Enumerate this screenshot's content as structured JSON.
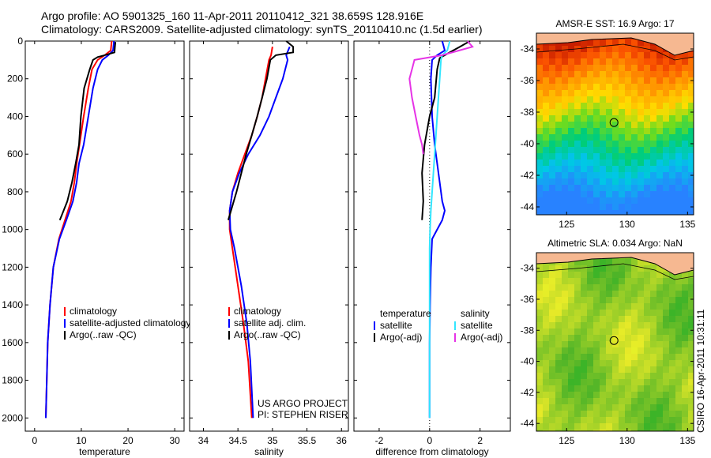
{
  "header": {
    "line1": "Argo profile: AO 5901325_160 11-Apr-2011 20110412_321 38.659S 128.916E",
    "line2": "Climatology: CARS2009. Satellite-adjusted climatology: synTS_20110410.nc (1.5d earlier)"
  },
  "credit": "CSIRO 16-Apr-2011 10:31:11",
  "colors": {
    "climatology": "#ff0000",
    "satellite": "#0000ff",
    "argo": "#000000",
    "sat_diff": "#33e6ff",
    "argo_diff": "#e633e6"
  },
  "chart_data": [
    {
      "id": "temperature",
      "type": "line",
      "xlabel": "temperature",
      "ylabel": "",
      "xlim": [
        -2,
        32
      ],
      "ylim": [
        2070,
        0
      ],
      "xticks": [
        0,
        10,
        20,
        30
      ],
      "yticks": [
        0,
        200,
        400,
        600,
        800,
        1000,
        1200,
        1400,
        1600,
        1800,
        2000
      ],
      "legend": {
        "placement": "lower-right",
        "entries": [
          "climatology",
          "satellite-adjusted climatology",
          "Argo(..raw -QC)"
        ]
      },
      "series": [
        {
          "name": "climatology",
          "color": "#ff0000",
          "x": [
            16.5,
            16.3,
            15.0,
            13.5,
            12.3,
            11.5,
            10.5,
            9.6,
            9.0,
            8.5,
            7.8,
            6.5,
            5.2,
            4.0,
            3.3,
            2.8,
            2.6,
            2.5,
            2.4
          ],
          "y": [
            0,
            50,
            75,
            100,
            150,
            250,
            400,
            550,
            650,
            750,
            850,
            950,
            1050,
            1200,
            1400,
            1600,
            1800,
            1900,
            2000
          ]
        },
        {
          "name": "satellite-adjusted climatology",
          "color": "#0000ff",
          "x": [
            17.0,
            16.8,
            15.8,
            14.5,
            13.5,
            12.5,
            11.5,
            10.5,
            9.5,
            9.0,
            8.2,
            6.8,
            5.3,
            4.0,
            3.3,
            2.8,
            2.6,
            2.5,
            2.4
          ],
          "y": [
            0,
            50,
            75,
            100,
            150,
            250,
            400,
            550,
            650,
            750,
            850,
            950,
            1050,
            1200,
            1400,
            1600,
            1800,
            1900,
            2000
          ]
        },
        {
          "name": "Argo(..raw -QC)",
          "color": "#000000",
          "x": [
            17.3,
            17.2,
            17.1,
            15.0,
            13.5,
            12.5,
            11.8,
            10.6,
            9.9,
            9.5,
            8.8,
            8.0,
            7.0,
            6.2,
            5.4
          ],
          "y": [
            5,
            30,
            60,
            75,
            85,
            100,
            150,
            250,
            400,
            550,
            650,
            750,
            850,
            900,
            950
          ]
        }
      ]
    },
    {
      "id": "salinity",
      "type": "line",
      "xlabel": "salinity",
      "ylabel": "",
      "xlim": [
        33.8,
        36.1
      ],
      "ylim": [
        2070,
        0
      ],
      "xticks": [
        34,
        34.5,
        35,
        35.5,
        36
      ],
      "yticks": [
        0,
        200,
        400,
        600,
        800,
        1000,
        1200,
        1400,
        1600,
        1800,
        2000
      ],
      "legend": {
        "placement": "lower-right",
        "entries": [
          "climatology",
          "satellite adj. clim.",
          "Argo(..raw -QC)"
        ]
      },
      "annotation": [
        "US ARGO PROJECT",
        "PI: STEPHEN RISER"
      ],
      "series": [
        {
          "name": "climatology",
          "color": "#ff0000",
          "x": [
            35.0,
            34.98,
            34.95,
            34.9,
            34.85,
            34.78,
            34.7,
            34.6,
            34.5,
            34.42,
            34.38,
            34.38,
            34.42,
            34.5,
            34.58,
            34.65,
            34.7
          ],
          "y": [
            30,
            75,
            100,
            200,
            300,
            400,
            500,
            600,
            700,
            800,
            900,
            1000,
            1100,
            1300,
            1500,
            1700,
            2000
          ]
        },
        {
          "name": "satellite adj. clim.",
          "color": "#0000ff",
          "x": [
            35.25,
            35.2,
            35.22,
            35.15,
            35.05,
            34.95,
            34.82,
            34.65,
            34.52,
            34.42,
            34.38,
            34.39,
            34.45,
            34.55,
            34.63,
            34.68,
            34.72
          ],
          "y": [
            30,
            75,
            100,
            200,
            300,
            400,
            500,
            600,
            700,
            800,
            900,
            1000,
            1100,
            1300,
            1500,
            1700,
            2000
          ]
        },
        {
          "name": "Argo(..raw -QC)",
          "color": "#000000",
          "x": [
            35.2,
            35.3,
            35.3,
            35.05,
            34.97,
            34.92,
            34.85,
            34.78,
            34.7,
            34.62,
            34.55,
            34.48,
            34.4,
            34.36
          ],
          "y": [
            0,
            30,
            60,
            75,
            100,
            200,
            300,
            400,
            500,
            600,
            700,
            800,
            900,
            950
          ]
        }
      ]
    },
    {
      "id": "difference",
      "type": "line",
      "xlabel": "difference from climatology",
      "ylabel": "",
      "xlim": [
        -3,
        3.2
      ],
      "ylim": [
        2070,
        0
      ],
      "xticks": [
        -2,
        0,
        2
      ],
      "yticks": [
        0,
        200,
        400,
        600,
        800,
        1000,
        1200,
        1400,
        1600,
        1800,
        2000
      ],
      "legend": {
        "placement": "lower-center",
        "headers": [
          "temperature",
          "salinity"
        ],
        "entries": [
          "satellite",
          "Argo(-adj)",
          "satellite",
          "Argo(-adj)"
        ]
      },
      "series": [
        {
          "name": "temperature satellite",
          "color": "#0000ff",
          "x": [
            0.5,
            0.6,
            0.3,
            0.1,
            0.05,
            0.1,
            0.2,
            0.3,
            0.4,
            0.5,
            0.6,
            0.5,
            0.3,
            0.1,
            0.05,
            0.02,
            0.0,
            0.0,
            0.0
          ],
          "y": [
            0,
            50,
            75,
            100,
            200,
            400,
            550,
            650,
            750,
            850,
            900,
            950,
            1000,
            1050,
            1200,
            1400,
            1600,
            1800,
            2000
          ]
        },
        {
          "name": "temperature Argo(-adj)",
          "color": "#000000",
          "x": [
            1.6,
            1.2,
            0.8,
            0.4,
            0.3,
            0.2,
            0.0,
            -0.2,
            -0.3,
            -0.25,
            -0.3
          ],
          "y": [
            0,
            30,
            60,
            90,
            150,
            300,
            400,
            550,
            700,
            850,
            950
          ]
        },
        {
          "name": "salinity satellite",
          "color": "#33e6ff",
          "x": [
            0.8,
            0.7,
            0.5,
            0.45,
            0.4,
            0.35,
            0.3,
            0.25,
            0.2,
            0.15,
            0.1,
            0.05,
            0.02,
            0.0,
            0.0,
            0.0,
            0.0,
            0.0
          ],
          "y": [
            0,
            50,
            75,
            100,
            200,
            300,
            400,
            500,
            600,
            700,
            800,
            900,
            1000,
            1100,
            1300,
            1500,
            1700,
            2000
          ]
        },
        {
          "name": "salinity Argo(-adj)",
          "color": "#e633e6",
          "x": [
            1.5,
            1.7,
            0.5,
            -0.6,
            -0.7,
            -0.8,
            -0.7,
            -0.55,
            -0.4,
            -0.3,
            -0.25
          ],
          "y": [
            0,
            30,
            75,
            100,
            150,
            200,
            300,
            400,
            500,
            550,
            600
          ]
        }
      ]
    },
    {
      "id": "sst-map",
      "type": "heatmap",
      "title": "AMSR-E SST: 16.9 Argo: 17",
      "xlim": [
        122.5,
        135.5
      ],
      "ylim": [
        -44.5,
        -33
      ],
      "xticks": [
        125,
        130,
        135
      ],
      "yticks": [
        -34,
        -36,
        -38,
        -40,
        -42,
        -44
      ],
      "marker": {
        "lon": 128.916,
        "lat": -38.659
      }
    },
    {
      "id": "sla-map",
      "type": "heatmap",
      "title": "Altimetric SLA: 0.034 Argo: NaN",
      "xlim": [
        122.5,
        135.5
      ],
      "ylim": [
        -44.5,
        -33
      ],
      "xticks": [
        125,
        130,
        135
      ],
      "yticks": [
        -34,
        -36,
        -38,
        -40,
        -42,
        -44
      ],
      "marker": {
        "lon": 128.916,
        "lat": -38.659
      }
    }
  ]
}
